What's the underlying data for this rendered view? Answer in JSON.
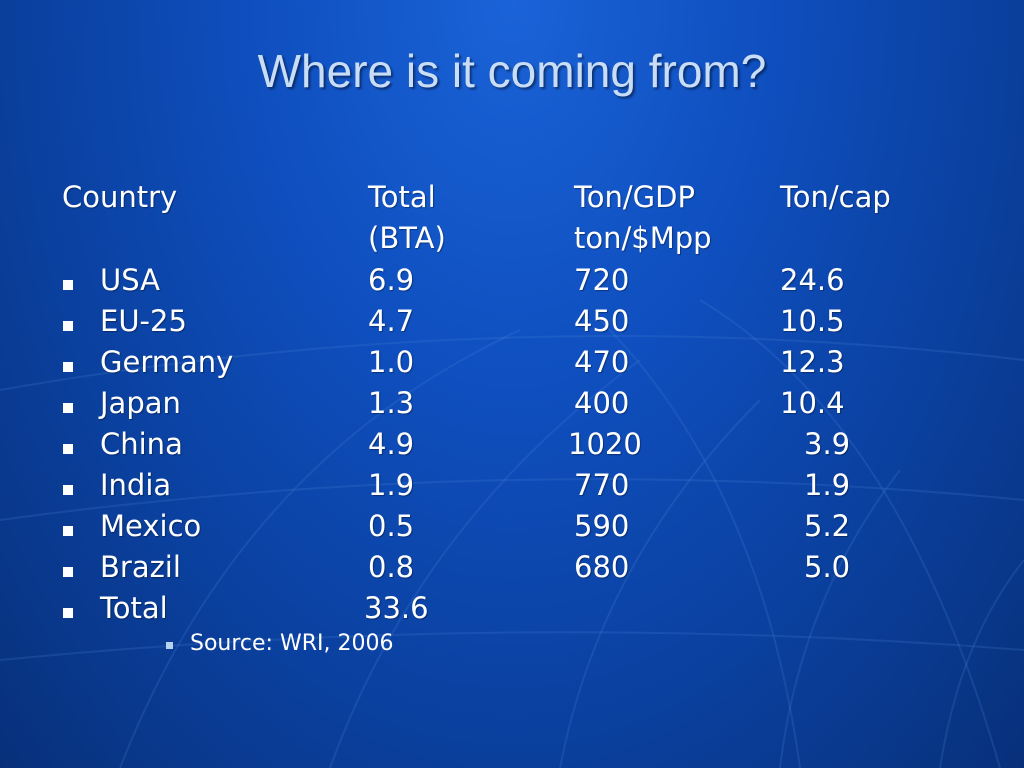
{
  "slide": {
    "title": "Where is it coming from?"
  },
  "table": {
    "headers": {
      "country": "Country",
      "total_line1": "Total",
      "total_line2": "(BTA)",
      "gdp_line1": "Ton/GDP",
      "gdp_line2": "ton/$Mpp",
      "cap": "Ton/cap"
    },
    "rows": [
      {
        "country": "USA",
        "total": "6.9",
        "gdp": "720",
        "cap": "24.6"
      },
      {
        "country": "EU-25",
        "total": "4.7",
        "gdp": "450",
        "cap": "10.5"
      },
      {
        "country": "Germany",
        "total": "1.0",
        "gdp": "470",
        "cap": "12.3"
      },
      {
        "country": "Japan",
        "total": "1.3",
        "gdp": "400",
        "cap": "10.4"
      },
      {
        "country": "China",
        "total": "4.9",
        "gdp": "1020",
        "cap": "3.9"
      },
      {
        "country": "India",
        "total": "1.9",
        "gdp": "770",
        "cap": "1.9"
      },
      {
        "country": "Mexico",
        "total": "0.5",
        "gdp": "590",
        "cap": "5.2"
      },
      {
        "country": "Brazil",
        "total": "0.8",
        "gdp": "680",
        "cap": "5.0"
      }
    ],
    "total_row": {
      "country": "Total",
      "total": "33.6"
    }
  },
  "source": "Source: WRI, 2006",
  "colors": {
    "background": "#0f4fbf",
    "title": "#c9ddf6",
    "text": "#ffffff",
    "sub_bullet": "#b5d2f3"
  }
}
